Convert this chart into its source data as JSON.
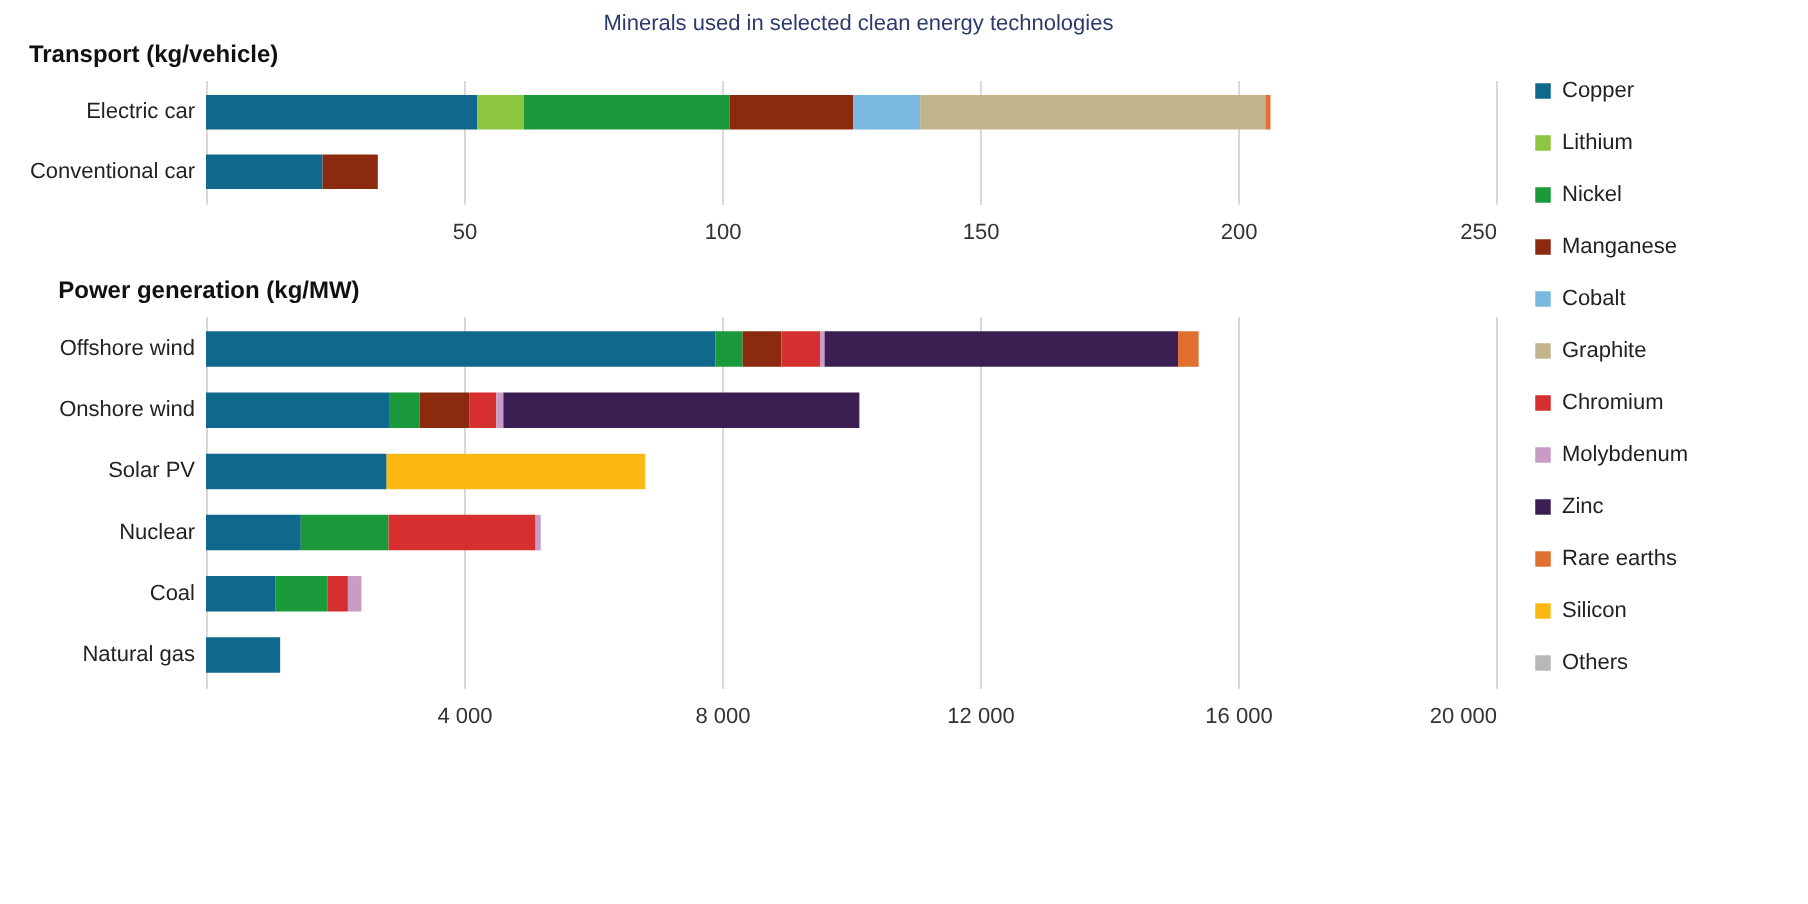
{
  "chart_data": [
    {
      "type": "bar",
      "title": "Minerals used in selected clean energy technologies",
      "subtitle": "Transport (kg/vehicle)",
      "orientation": "horizontal",
      "stacked": true,
      "grid": "x",
      "legend": "right",
      "categories": [
        "Electric car",
        "Conventional car"
      ],
      "xlim": [
        0,
        250
      ],
      "xticks": [
        50,
        100,
        150,
        200,
        250
      ],
      "series": [
        {
          "name": "Copper",
          "color": "#10698c",
          "values": [
            52.6,
            22.6
          ]
        },
        {
          "name": "Lithium",
          "color": "#8dc63f",
          "values": [
            9,
            null
          ]
        },
        {
          "name": "Nickel",
          "color": "#1a9a3a",
          "values": [
            39.9,
            null
          ]
        },
        {
          "name": "Manganese",
          "color": "#8b2a0e",
          "values": [
            23.9,
            10.7
          ]
        },
        {
          "name": "Cobalt",
          "color": "#7ab8e0",
          "values": [
            13,
            null
          ]
        },
        {
          "name": "Graphite",
          "color": "#c4b48e",
          "values": [
            66.9,
            null
          ]
        },
        {
          "name": "Rare earths",
          "color": "#e07030",
          "values": [
            1,
            null
          ]
        }
      ]
    },
    {
      "type": "bar",
      "subtitle": "Power generation (kg/MW)",
      "orientation": "horizontal",
      "stacked": true,
      "grid": "x",
      "legend": "right",
      "categories": [
        "Offshore wind",
        "Onshore wind",
        "Solar PV",
        "Nuclear",
        "Coal",
        "Natural gas"
      ],
      "xlim": [
        0,
        20000
      ],
      "xticks": [
        {
          "value": 4000,
          "label": "4 000"
        },
        {
          "value": 8000,
          "label": "8 000"
        },
        {
          "value": 12000,
          "label": "12 000"
        },
        {
          "value": 16000,
          "label": "16 000"
        },
        {
          "value": 20000,
          "label": "20 000"
        }
      ],
      "series": [
        {
          "name": "Copper",
          "color": "#10698c",
          "values": [
            7900,
            2850,
            2800,
            1470,
            1080,
            1150
          ]
        },
        {
          "name": "Nickel",
          "color": "#1a9a3a",
          "values": [
            420,
            460,
            null,
            1360,
            800,
            null
          ]
        },
        {
          "name": "Manganese",
          "color": "#8b2a0e",
          "values": [
            600,
            770,
            null,
            null,
            null,
            null
          ]
        },
        {
          "name": "Chromium",
          "color": "#d62f2f",
          "values": [
            600,
            420,
            null,
            2280,
            320,
            null
          ]
        },
        {
          "name": "Molybdenum",
          "color": "#c99bc5",
          "values": [
            70,
            110,
            null,
            80,
            210,
            null
          ]
        },
        {
          "name": "Zinc",
          "color": "#3c1f52",
          "values": [
            5480,
            5520,
            null,
            null,
            null,
            null
          ]
        },
        {
          "name": "Rare earths",
          "color": "#e07030",
          "values": [
            320,
            null,
            null,
            null,
            null,
            null
          ]
        },
        {
          "name": "Silicon",
          "color": "#fdb913",
          "values": [
            null,
            null,
            4010,
            null,
            null,
            null
          ]
        },
        {
          "name": "Others",
          "color": "#b8b8b8",
          "values": [
            null,
            null,
            null,
            null,
            null,
            null
          ]
        }
      ]
    }
  ]
}
